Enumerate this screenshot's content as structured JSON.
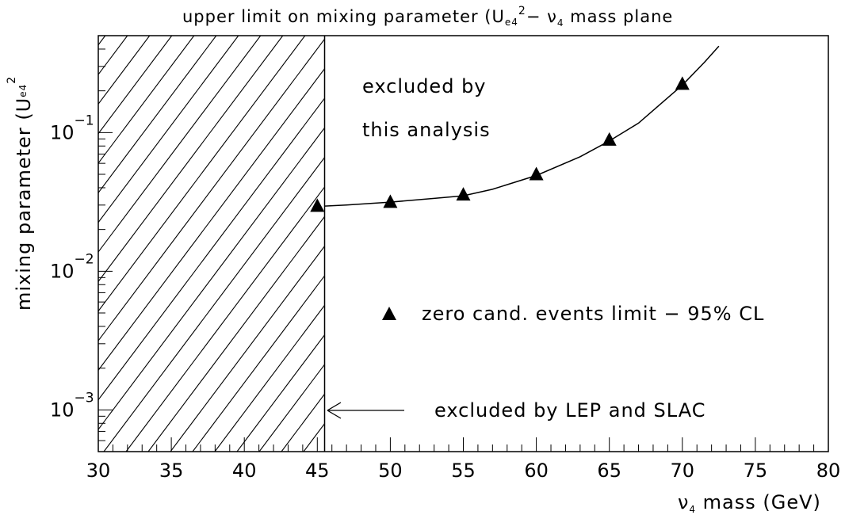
{
  "chart_data": {
    "type": "scatter",
    "title": "upper limit on mixing parameter  (U",
    "title_sub": "e4",
    "title_sup": "2",
    "title_tail": "− ν",
    "title_tail_sub": "4",
    "title_end": " mass plane",
    "xlabel": "ν",
    "xlabel_sub": "4",
    "xlabel_tail": " mass (GeV)",
    "ylabel": "mixing parameter (U",
    "ylabel_sub": "e4",
    "ylabel_sup": "2",
    "x_ticks": [
      "30",
      "35",
      "40",
      "45",
      "50",
      "55",
      "60",
      "65",
      "70",
      "75",
      "80"
    ],
    "y_ticks": [
      {
        "base": "10",
        "exp": "−1",
        "value": 0.1
      },
      {
        "base": "10",
        "exp": "−2",
        "value": 0.01
      },
      {
        "base": "10",
        "exp": "−3",
        "value": 0.001
      }
    ],
    "xlim": [
      30,
      80
    ],
    "ylim": [
      0.0005,
      0.5
    ],
    "y_scale": "log",
    "series": [
      {
        "name": "zero cand. events limit − 95% CL",
        "marker": "filled-triangle",
        "x": [
          45,
          50,
          55,
          60,
          65,
          70
        ],
        "y": [
          0.029,
          0.031,
          0.035,
          0.049,
          0.087,
          0.22
        ]
      }
    ],
    "curve": {
      "x": [
        45.5,
        47,
        50,
        53,
        55,
        57,
        60,
        63,
        65,
        67,
        70,
        71.5,
        72.5
      ],
      "y": [
        0.0295,
        0.03,
        0.0315,
        0.0335,
        0.035,
        0.039,
        0.049,
        0.067,
        0.087,
        0.117,
        0.22,
        0.32,
        0.42
      ]
    },
    "excluded_region": {
      "x_from": 30,
      "x_to": 45.5,
      "fill": "hatched"
    },
    "annotations": {
      "upper_line1": "excluded by",
      "upper_line2": "this analysis",
      "lep": "excluded by LEP and SLAC",
      "legend_label": "zero cand. events limit − 95% CL"
    },
    "grid": false,
    "legend_position": "middle-center"
  }
}
